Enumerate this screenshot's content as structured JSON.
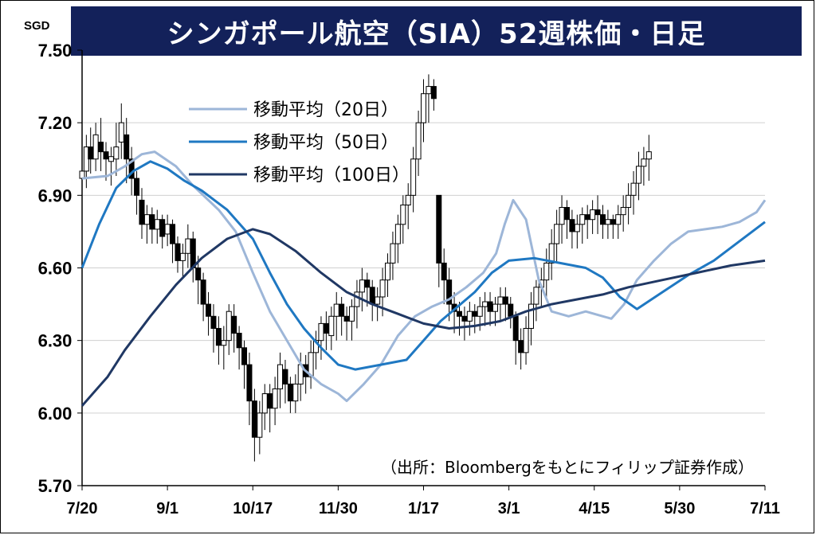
{
  "title": "シンガポール航空（SIA）52週株価・日足",
  "chart_data": {
    "type": "candlestick",
    "unit": "SGD",
    "ylim": [
      5.7,
      7.5
    ],
    "yticks": [
      "7.50",
      "7.20",
      "6.90",
      "6.60",
      "6.30",
      "6.00",
      "5.70"
    ],
    "ytick_values": [
      7.5,
      7.2,
      6.9,
      6.6,
      6.3,
      6.0,
      5.7
    ],
    "xticks": [
      "7/20",
      "9/1",
      "10/17",
      "11/30",
      "1/17",
      "3/1",
      "4/15",
      "5/30",
      "7/11"
    ],
    "grid": true,
    "legend_position": "top-left",
    "source": "（出所：Bloombergをもとにフィリップ証券作成）",
    "series": [
      {
        "name": "移動平均（20日）",
        "color": "#9db6d8",
        "points": [
          [
            0,
            6.97
          ],
          [
            0.3,
            6.98
          ],
          [
            0.5,
            7.02
          ],
          [
            0.7,
            7.07
          ],
          [
            0.85,
            7.08
          ],
          [
            1.1,
            7.02
          ],
          [
            1.3,
            6.94
          ],
          [
            1.6,
            6.84
          ],
          [
            1.8,
            6.75
          ],
          [
            2.0,
            6.58
          ],
          [
            2.2,
            6.42
          ],
          [
            2.4,
            6.3
          ],
          [
            2.6,
            6.18
          ],
          [
            2.8,
            6.12
          ],
          [
            3.0,
            6.08
          ],
          [
            3.1,
            6.05
          ],
          [
            3.3,
            6.12
          ],
          [
            3.5,
            6.2
          ],
          [
            3.7,
            6.32
          ],
          [
            3.9,
            6.4
          ],
          [
            4.1,
            6.44
          ],
          [
            4.3,
            6.47
          ],
          [
            4.5,
            6.52
          ],
          [
            4.7,
            6.58
          ],
          [
            4.85,
            6.66
          ],
          [
            4.95,
            6.78
          ],
          [
            5.05,
            6.88
          ],
          [
            5.2,
            6.8
          ],
          [
            5.35,
            6.55
          ],
          [
            5.5,
            6.42
          ],
          [
            5.7,
            6.4
          ],
          [
            5.9,
            6.42
          ],
          [
            6.1,
            6.4
          ],
          [
            6.2,
            6.39
          ],
          [
            6.35,
            6.45
          ],
          [
            6.5,
            6.55
          ],
          [
            6.7,
            6.63
          ],
          [
            6.9,
            6.7
          ],
          [
            7.1,
            6.75
          ],
          [
            7.3,
            6.76
          ],
          [
            7.5,
            6.77
          ],
          [
            7.7,
            6.79
          ],
          [
            7.9,
            6.83
          ],
          [
            8.0,
            6.88
          ]
        ]
      },
      {
        "name": "移動平均（50日）",
        "color": "#1f78c2",
        "points": [
          [
            0,
            6.6
          ],
          [
            0.2,
            6.78
          ],
          [
            0.4,
            6.93
          ],
          [
            0.6,
            7.0
          ],
          [
            0.8,
            7.04
          ],
          [
            1.0,
            7.01
          ],
          [
            1.2,
            6.96
          ],
          [
            1.4,
            6.92
          ],
          [
            1.7,
            6.84
          ],
          [
            2.0,
            6.72
          ],
          [
            2.2,
            6.58
          ],
          [
            2.4,
            6.45
          ],
          [
            2.6,
            6.35
          ],
          [
            2.8,
            6.27
          ],
          [
            3.0,
            6.2
          ],
          [
            3.2,
            6.18
          ],
          [
            3.5,
            6.2
          ],
          [
            3.8,
            6.22
          ],
          [
            4.0,
            6.3
          ],
          [
            4.2,
            6.38
          ],
          [
            4.4,
            6.44
          ],
          [
            4.6,
            6.5
          ],
          [
            4.8,
            6.58
          ],
          [
            5.0,
            6.63
          ],
          [
            5.3,
            6.64
          ],
          [
            5.6,
            6.62
          ],
          [
            5.9,
            6.6
          ],
          [
            6.1,
            6.56
          ],
          [
            6.3,
            6.48
          ],
          [
            6.5,
            6.43
          ],
          [
            6.8,
            6.5
          ],
          [
            7.1,
            6.57
          ],
          [
            7.4,
            6.63
          ],
          [
            7.7,
            6.71
          ],
          [
            8.0,
            6.79
          ]
        ]
      },
      {
        "name": "移動平均（100日）",
        "color": "#203864",
        "points": [
          [
            0,
            6.03
          ],
          [
            0.3,
            6.15
          ],
          [
            0.5,
            6.26
          ],
          [
            0.8,
            6.4
          ],
          [
            1.1,
            6.53
          ],
          [
            1.4,
            6.64
          ],
          [
            1.7,
            6.72
          ],
          [
            2.0,
            6.76
          ],
          [
            2.2,
            6.74
          ],
          [
            2.5,
            6.67
          ],
          [
            2.8,
            6.58
          ],
          [
            3.1,
            6.5
          ],
          [
            3.4,
            6.45
          ],
          [
            3.7,
            6.41
          ],
          [
            4.0,
            6.37
          ],
          [
            4.3,
            6.35
          ],
          [
            4.6,
            6.36
          ],
          [
            4.9,
            6.38
          ],
          [
            5.2,
            6.42
          ],
          [
            5.5,
            6.45
          ],
          [
            5.8,
            6.47
          ],
          [
            6.1,
            6.49
          ],
          [
            6.4,
            6.52
          ],
          [
            6.8,
            6.55
          ],
          [
            7.2,
            6.58
          ],
          [
            7.6,
            6.61
          ],
          [
            8.0,
            6.63
          ]
        ]
      }
    ],
    "candles": [
      [
        0,
        6.97,
        7.0,
        6.95,
        6.9,
        7.05
      ],
      [
        0.05,
        7.0,
        7.1,
        6.97,
        6.93,
        7.15
      ],
      [
        0.1,
        7.1,
        7.05,
        7.0,
        6.99,
        7.18
      ],
      [
        0.16,
        7.05,
        7.15,
        7.03,
        7.0,
        7.2
      ],
      [
        0.22,
        7.12,
        7.08,
        7.05,
        7.0,
        7.22
      ],
      [
        0.28,
        7.08,
        7.05,
        7.0,
        6.96,
        7.12
      ],
      [
        0.34,
        7.04,
        7.06,
        6.98,
        6.94,
        7.1
      ],
      [
        0.4,
        7.05,
        7.1,
        7.02,
        6.98,
        7.2
      ],
      [
        0.46,
        7.12,
        7.2,
        7.08,
        7.05,
        7.28
      ],
      [
        0.52,
        7.15,
        7.05,
        7.0,
        6.95,
        7.22
      ],
      [
        0.58,
        7.05,
        6.97,
        6.93,
        6.9,
        7.1
      ],
      [
        0.64,
        6.97,
        6.9,
        6.85,
        6.82,
        7.0
      ],
      [
        0.7,
        6.88,
        6.78,
        6.75,
        6.72,
        6.93
      ],
      [
        0.76,
        6.78,
        6.82,
        6.75,
        6.7,
        6.86
      ],
      [
        0.82,
        6.82,
        6.76,
        6.73,
        6.7,
        6.85
      ],
      [
        0.88,
        6.76,
        6.8,
        6.74,
        6.7,
        6.84
      ],
      [
        0.94,
        6.8,
        6.73,
        6.72,
        6.68,
        6.82
      ],
      [
        1.0,
        6.74,
        6.78,
        6.72,
        6.69,
        6.82
      ],
      [
        1.06,
        6.78,
        6.7,
        6.68,
        6.62,
        6.8
      ],
      [
        1.12,
        6.7,
        6.63,
        6.62,
        6.58,
        6.73
      ],
      [
        1.18,
        6.63,
        6.66,
        6.6,
        6.56,
        6.7
      ],
      [
        1.24,
        6.66,
        6.72,
        6.64,
        6.6,
        6.78
      ],
      [
        1.3,
        6.72,
        6.6,
        6.58,
        6.54,
        6.75
      ],
      [
        1.36,
        6.6,
        6.55,
        6.5,
        6.45,
        6.65
      ],
      [
        1.42,
        6.55,
        6.45,
        6.42,
        6.38,
        6.58
      ],
      [
        1.48,
        6.45,
        6.4,
        6.36,
        6.32,
        6.5
      ],
      [
        1.54,
        6.4,
        6.35,
        6.3,
        6.25,
        6.45
      ],
      [
        1.6,
        6.35,
        6.28,
        6.25,
        6.2,
        6.4
      ],
      [
        1.66,
        6.28,
        6.3,
        6.25,
        6.18,
        6.36
      ],
      [
        1.72,
        6.3,
        6.42,
        6.28,
        6.24,
        6.45
      ],
      [
        1.78,
        6.4,
        6.33,
        6.3,
        6.25,
        6.45
      ],
      [
        1.84,
        6.33,
        6.27,
        6.22,
        6.18,
        6.36
      ],
      [
        1.9,
        6.27,
        6.2,
        6.15,
        6.1,
        6.3
      ],
      [
        1.96,
        6.2,
        6.05,
        6.0,
        5.95,
        6.25
      ],
      [
        2.02,
        6.05,
        5.9,
        5.86,
        5.8,
        6.1
      ],
      [
        2.08,
        5.9,
        6.0,
        5.88,
        5.83,
        6.05
      ],
      [
        2.14,
        6.0,
        6.08,
        5.98,
        5.93,
        6.12
      ],
      [
        2.2,
        6.08,
        6.02,
        5.98,
        5.92,
        6.12
      ],
      [
        2.26,
        6.02,
        6.1,
        6.0,
        5.95,
        6.15
      ],
      [
        2.32,
        6.1,
        6.2,
        6.08,
        6.02,
        6.25
      ],
      [
        2.38,
        6.18,
        6.12,
        6.08,
        6.04,
        6.22
      ],
      [
        2.44,
        6.12,
        6.05,
        6.02,
        6.0,
        6.15
      ],
      [
        2.5,
        6.05,
        6.12,
        6.03,
        6.0,
        6.16
      ],
      [
        2.56,
        6.12,
        6.2,
        6.1,
        6.05,
        6.25
      ],
      [
        2.62,
        6.2,
        6.15,
        6.12,
        6.08,
        6.24
      ],
      [
        2.68,
        6.15,
        6.25,
        6.12,
        6.1,
        6.3
      ],
      [
        2.74,
        6.25,
        6.3,
        6.22,
        6.18,
        6.34
      ],
      [
        2.8,
        6.3,
        6.37,
        6.27,
        6.22,
        6.4
      ],
      [
        2.86,
        6.37,
        6.33,
        6.3,
        6.26,
        6.42
      ],
      [
        2.92,
        6.32,
        6.4,
        6.3,
        6.26,
        6.44
      ],
      [
        2.98,
        6.4,
        6.45,
        6.36,
        6.3,
        6.5
      ],
      [
        3.04,
        6.45,
        6.4,
        6.36,
        6.32,
        6.48
      ],
      [
        3.1,
        6.4,
        6.38,
        6.34,
        6.3,
        6.44
      ],
      [
        3.16,
        6.38,
        6.44,
        6.35,
        6.3,
        6.47
      ],
      [
        3.22,
        6.44,
        6.5,
        6.4,
        6.35,
        6.55
      ],
      [
        3.28,
        6.5,
        6.55,
        6.46,
        6.42,
        6.6
      ],
      [
        3.34,
        6.55,
        6.52,
        6.48,
        6.44,
        6.58
      ],
      [
        3.4,
        6.52,
        6.45,
        6.42,
        6.38,
        6.55
      ],
      [
        3.46,
        6.45,
        6.48,
        6.42,
        6.38,
        6.52
      ],
      [
        3.52,
        6.48,
        6.55,
        6.45,
        6.4,
        6.6
      ],
      [
        3.58,
        6.55,
        6.62,
        6.52,
        6.48,
        6.66
      ],
      [
        3.64,
        6.62,
        6.7,
        6.6,
        6.55,
        6.75
      ],
      [
        3.7,
        6.7,
        6.78,
        6.66,
        6.62,
        6.82
      ],
      [
        3.76,
        6.78,
        6.86,
        6.74,
        6.7,
        6.9
      ],
      [
        3.82,
        6.86,
        6.9,
        6.8,
        6.76,
        6.95
      ],
      [
        3.88,
        6.9,
        7.05,
        6.88,
        6.83,
        7.1
      ],
      [
        3.94,
        7.05,
        7.2,
        7.02,
        6.98,
        7.25
      ],
      [
        4.0,
        7.2,
        7.32,
        7.16,
        7.12,
        7.38
      ],
      [
        4.06,
        7.32,
        7.35,
        7.25,
        7.2,
        7.4
      ],
      [
        4.12,
        7.35,
        7.3,
        7.28,
        7.25,
        7.38
      ],
      [
        4.18,
        6.9,
        6.62,
        6.58,
        6.52,
        6.75
      ],
      [
        4.24,
        6.62,
        6.55,
        6.5,
        6.45,
        6.68
      ],
      [
        4.3,
        6.55,
        6.45,
        6.42,
        6.38,
        6.6
      ],
      [
        4.36,
        6.45,
        6.42,
        6.38,
        6.33,
        6.5
      ],
      [
        4.42,
        6.42,
        6.4,
        6.36,
        6.32,
        6.46
      ],
      [
        4.48,
        6.4,
        6.38,
        6.35,
        6.3,
        6.44
      ],
      [
        4.54,
        6.38,
        6.42,
        6.36,
        6.32,
        6.46
      ],
      [
        4.6,
        6.42,
        6.4,
        6.37,
        6.33,
        6.45
      ],
      [
        4.66,
        6.4,
        6.44,
        6.38,
        6.34,
        6.48
      ],
      [
        4.72,
        6.44,
        6.46,
        6.4,
        6.36,
        6.5
      ],
      [
        4.78,
        6.46,
        6.42,
        6.4,
        6.36,
        6.5
      ],
      [
        4.84,
        6.42,
        6.45,
        6.4,
        6.36,
        6.48
      ],
      [
        4.9,
        6.45,
        6.48,
        6.42,
        6.38,
        6.52
      ],
      [
        4.96,
        6.48,
        6.45,
        6.42,
        6.38,
        6.52
      ],
      [
        5.02,
        6.45,
        6.4,
        6.38,
        6.35,
        6.48
      ],
      [
        5.08,
        6.4,
        6.3,
        6.26,
        6.2,
        6.42
      ],
      [
        5.14,
        6.3,
        6.25,
        6.22,
        6.18,
        6.35
      ],
      [
        5.2,
        6.25,
        6.35,
        6.23,
        6.2,
        6.4
      ],
      [
        5.26,
        6.35,
        6.45,
        6.32,
        6.28,
        6.5
      ],
      [
        5.32,
        6.45,
        6.52,
        6.42,
        6.38,
        6.55
      ],
      [
        5.38,
        6.52,
        6.55,
        6.48,
        6.44,
        6.6
      ],
      [
        5.44,
        6.55,
        6.62,
        6.52,
        6.48,
        6.68
      ],
      [
        5.5,
        6.62,
        6.7,
        6.58,
        6.55,
        6.76
      ],
      [
        5.56,
        6.7,
        6.78,
        6.66,
        6.62,
        6.84
      ],
      [
        5.62,
        6.78,
        6.85,
        6.74,
        6.7,
        6.9
      ],
      [
        5.68,
        6.85,
        6.8,
        6.76,
        6.72,
        6.88
      ],
      [
        5.74,
        6.8,
        6.75,
        6.72,
        6.68,
        6.84
      ],
      [
        5.8,
        6.75,
        6.78,
        6.72,
        6.68,
        6.82
      ],
      [
        5.86,
        6.78,
        6.82,
        6.74,
        6.7,
        6.85
      ],
      [
        5.92,
        6.82,
        6.8,
        6.76,
        6.72,
        6.86
      ],
      [
        5.98,
        6.8,
        6.84,
        6.77,
        6.74,
        6.88
      ],
      [
        6.04,
        6.84,
        6.82,
        6.78,
        6.74,
        6.9
      ],
      [
        6.1,
        6.82,
        6.78,
        6.76,
        6.72,
        6.86
      ],
      [
        6.16,
        6.78,
        6.8,
        6.75,
        6.72,
        6.84
      ],
      [
        6.22,
        6.8,
        6.78,
        6.76,
        6.72,
        6.82
      ],
      [
        6.28,
        6.78,
        6.82,
        6.76,
        6.72,
        6.86
      ],
      [
        6.34,
        6.82,
        6.85,
        6.78,
        6.75,
        6.9
      ],
      [
        6.4,
        6.85,
        6.9,
        6.82,
        6.78,
        6.95
      ],
      [
        6.46,
        6.9,
        6.95,
        6.86,
        6.82,
        7.0
      ],
      [
        6.52,
        6.95,
        7.02,
        6.92,
        6.88,
        7.08
      ],
      [
        6.58,
        7.02,
        7.05,
        6.98,
        6.94,
        7.1
      ],
      [
        6.64,
        7.05,
        7.08,
        7.0,
        6.96,
        7.15
      ]
    ]
  }
}
